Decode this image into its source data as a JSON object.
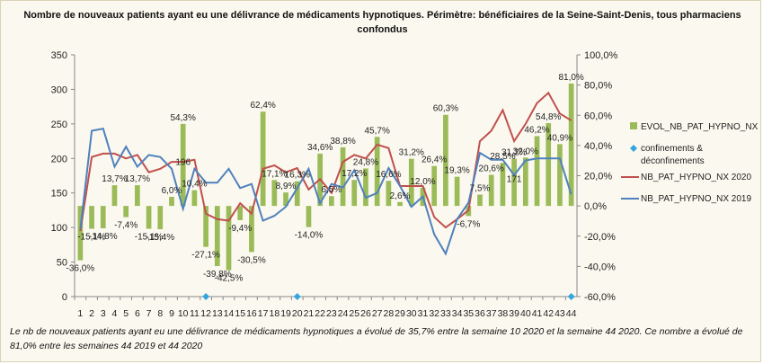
{
  "chart_data": {
    "type": "bar",
    "title": "Nombre de nouveaux  patients  ayant eu une délivrance  de médicaments  hypnotiques.  Périmètre: bénéficiaires de la Seine-Saint-Denis, tous pharmaciens confondus",
    "categories": [
      "1",
      "2",
      "3",
      "4",
      "5",
      "6",
      "7",
      "8",
      "9",
      "10",
      "11",
      "12",
      "13",
      "14",
      "15",
      "16",
      "17",
      "18",
      "19",
      "20",
      "21",
      "22",
      "23",
      "24",
      "25",
      "26",
      "27",
      "28",
      "29",
      "30",
      "31",
      "32",
      "33",
      "34",
      "35",
      "36",
      "37",
      "38",
      "39",
      "40",
      "41",
      "42",
      "43",
      "44"
    ],
    "y_left_ticks": [
      0,
      50,
      100,
      150,
      200,
      250,
      300,
      350
    ],
    "y_left_range": [
      0,
      350
    ],
    "y_right_ticks": [
      "-60,0%",
      "-40,0%",
      "-20,0%",
      "0,0%",
      "20,0%",
      "40,0%",
      "60,0%",
      "80,0%",
      "100,0%"
    ],
    "y_right_range": [
      -60,
      100
    ],
    "series": [
      {
        "name": "EVOL_NB_PAT_HYPNO_NX",
        "axis": "right",
        "kind": "bar",
        "color": "#9bbb59",
        "values": [
          -36.0,
          -15.1,
          -14.8,
          13.7,
          -7.4,
          13.7,
          -15.1,
          -15.4,
          6.0,
          54.3,
          10.4,
          -27.1,
          -39.8,
          -42.5,
          -9.4,
          -30.5,
          62.4,
          17.1,
          8.9,
          16.3,
          -14.0,
          34.6,
          6.5,
          38.8,
          17.2,
          24.8,
          45.7,
          16.6,
          2.6,
          31.2,
          12.0,
          26.4,
          60.3,
          19.3,
          -6.7,
          7.5,
          20.6,
          28.5,
          31.2,
          32.0,
          46.2,
          54.8,
          40.9,
          81.0
        ]
      },
      {
        "name": "NB_PAT_HYPNO_NX 2020",
        "axis": "left",
        "kind": "line",
        "color": "#c0504d",
        "values": [
          95,
          202,
          207,
          207,
          200,
          205,
          180,
          185,
          195,
          195,
          198,
          120,
          112,
          110,
          135,
          120,
          185,
          190,
          180,
          186,
          155,
          170,
          150,
          195,
          205,
          200,
          220,
          215,
          160,
          160,
          160,
          115,
          100,
          112,
          125,
          225,
          240,
          270,
          225,
          250,
          280,
          295,
          265,
          255
        ]
      },
      {
        "name": "NB_PAT_HYPNO_NX 2019",
        "axis": "left",
        "kind": "line",
        "color": "#4f81bd",
        "values": [
          98,
          240,
          243,
          188,
          217,
          188,
          205,
          202,
          185,
          127,
          185,
          165,
          165,
          185,
          157,
          163,
          110,
          117,
          130,
          157,
          185,
          135,
          163,
          158,
          183,
          143,
          150,
          186,
          160,
          130,
          145,
          90,
          62,
          112,
          136,
          208,
          198,
          198,
          176,
          197,
          200,
          200,
          200,
          148
        ]
      },
      {
        "name": "confinements & déconfinements",
        "axis": "left",
        "kind": "marker",
        "color": "#33a6e0",
        "x": [
          "12",
          "20",
          "44"
        ],
        "values": [
          0,
          0,
          0
        ]
      }
    ],
    "data_labels": [
      "-36,0%",
      "-15,1%",
      "-14,8%",
      "13,7%",
      "-7,4%",
      "13,7%",
      "-15,1%",
      "-15,4%",
      "6,0%",
      "54,3%",
      "10,4%",
      "-27,1%",
      "-39,8%",
      "-42,5%",
      "-9,4%",
      "-30,5%",
      "62,4%",
      "17,1%",
      "8,9%",
      "16,3%",
      "-14,0%",
      "34,6%",
      "6,5%",
      "38,8%",
      "17,2%",
      "24,8%",
      "45,7%",
      "16,6%",
      "2,6%",
      "31,2%",
      "12,0%",
      "26,4%",
      "60,3%",
      "19,3%",
      "-6,7%",
      "7,5%",
      "20,6%",
      "28,5%",
      "31,2%",
      "32,0%",
      "46,2%",
      "54,8%",
      "40,9%",
      "81,0%"
    ],
    "extra_labels": [
      "196",
      "171"
    ],
    "legend_position": "right",
    "grid": false
  },
  "note": "Le nb de nouveaux  patients  ayant  eu une délivrance  de médicaments  hypnotiques  a évolué de 35,7% entre la semaine 10 2020 et la semaine 44 2020.  Ce nombre a évolué de 81,0% entre les semaines 44 2019 et 44 2020"
}
